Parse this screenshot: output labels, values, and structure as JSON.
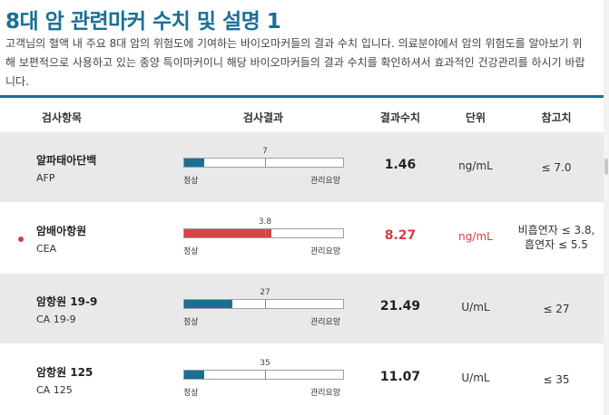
{
  "page": {
    "title": "8대 암 관련마커 수치 및 설명 1",
    "intro": "고객님의 혈액 내 주요 8대 암의 위험도에 기여하는 바이오마커들의 결과 수치 입니다. 의료분야에서 암의 위험도를 알아보기 위해 보편적으로 사용하고 있는 종양 특이마커이니 해당 바이오마커들의 결과 수치를 확인하셔서 효과적인 건강관리를 하시기 바랍니다."
  },
  "table": {
    "headers": {
      "item": "검사항목",
      "result_bar": "검사결과",
      "value": "결과수치",
      "unit": "단위",
      "reference": "참고치"
    },
    "normal_label": "정상",
    "caution_label": "관리요망",
    "rows": [
      {
        "name": "알파태아단백",
        "code": "AFP",
        "ref_mark": "7",
        "fill_fraction": 0.125,
        "ref_fraction": 0.5,
        "value": "1.46",
        "unit": "ng/mL",
        "reference": "≤ 7.0",
        "reference_line2": "",
        "flagged": false
      },
      {
        "name": "암배아항원",
        "code": "CEA",
        "ref_mark": "3.8",
        "fill_fraction": 0.54,
        "ref_fraction": 0.5,
        "value": "8.27",
        "unit": "ng/mL",
        "reference": "비흡연자 ≤ 3.8,",
        "reference_line2": "흡연자 ≤ 5.5",
        "flagged": true
      },
      {
        "name": "암항원 19-9",
        "code": "CA 19-9",
        "ref_mark": "27",
        "fill_fraction": 0.3,
        "ref_fraction": 0.5,
        "value": "21.49",
        "unit": "U/mL",
        "reference": "≤ 27",
        "reference_line2": "",
        "flagged": false
      },
      {
        "name": "암항원 125",
        "code": "CA 125",
        "ref_mark": "35",
        "fill_fraction": 0.125,
        "ref_fraction": 0.5,
        "value": "11.07",
        "unit": "U/mL",
        "reference": "≤ 35",
        "reference_line2": "",
        "flagged": false
      }
    ]
  },
  "colors": {
    "accent": "#1a6f95",
    "danger": "#d43d3d",
    "row_alt": "#e9e9e9"
  }
}
